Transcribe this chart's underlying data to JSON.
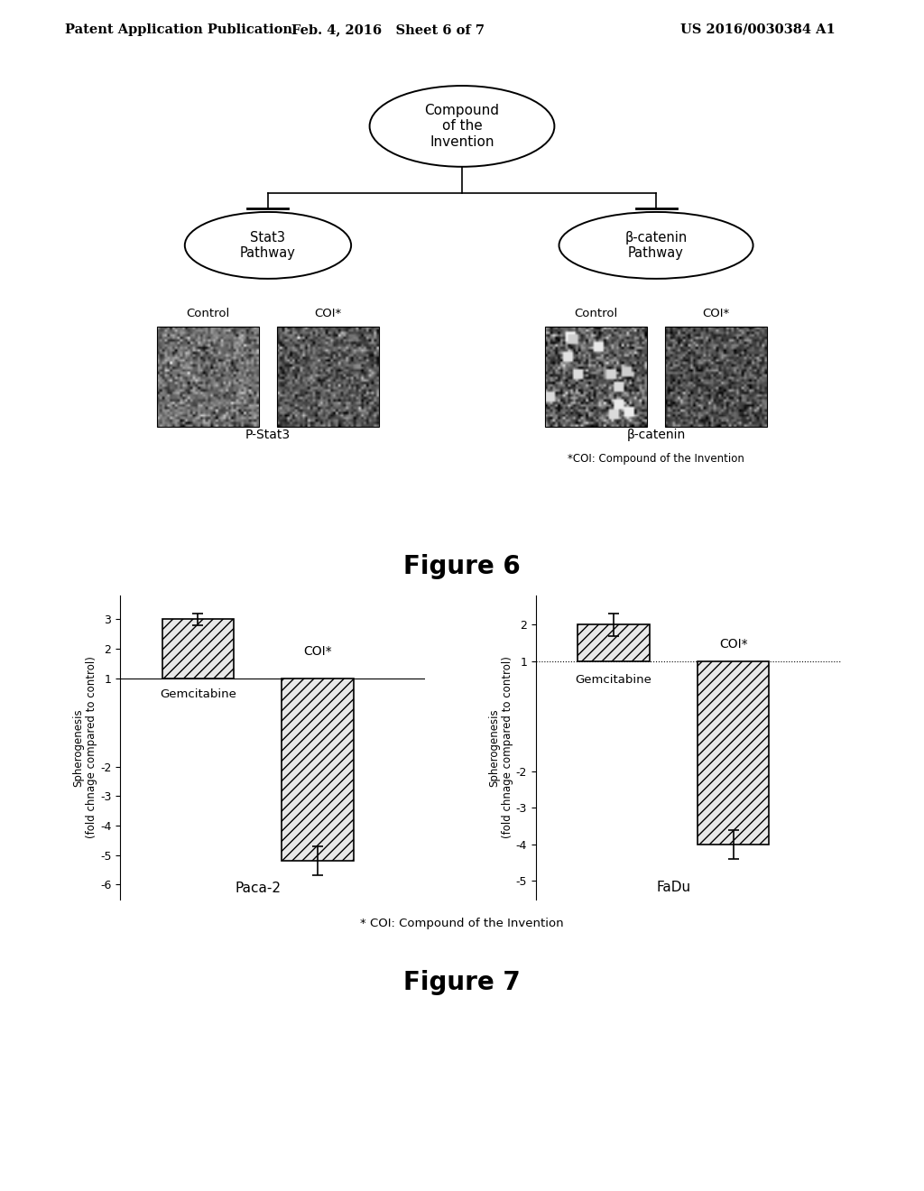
{
  "header_left": "Patent Application Publication",
  "header_mid": "Feb. 4, 2016   Sheet 6 of 7",
  "header_right": "US 2016/0030384 A1",
  "diagram": {
    "root_label": "Compound\nof the\nInvention",
    "left_child_label": "Stat3\nPathway",
    "right_child_label": "β-catenin\nPathway",
    "left_img_labels": [
      "Control",
      "COI*"
    ],
    "right_img_labels": [
      "Control",
      "COI*"
    ],
    "left_caption": "P-Stat3",
    "right_caption": "β-catenin",
    "coi_note": "*COI: Compound of the Invention"
  },
  "figure6_label": "Figure 6",
  "chart1": {
    "bar_values": [
      3.0,
      -5.2
    ],
    "bar_errors": [
      0.2,
      0.5
    ],
    "bar_labels": [
      "Gemcitabine",
      "COI*"
    ],
    "ylabel_line1": "Spherogenesis",
    "ylabel_line2": "(fold chnage compared to control)",
    "xlabel": "Paca-2",
    "yticks": [
      3,
      2,
      1,
      -2,
      -3,
      -4,
      -5,
      -6
    ],
    "yline": 1,
    "ylim": [
      -6.5,
      3.8
    ]
  },
  "chart2": {
    "bar_values": [
      2.0,
      -4.0
    ],
    "bar_errors": [
      0.3,
      0.4
    ],
    "bar_labels": [
      "Gemcitabine",
      "COI*"
    ],
    "ylabel_line1": "Spherogenesis",
    "ylabel_line2": "(fold chnage compared to control)",
    "xlabel": "FaDu",
    "yticks": [
      2,
      1,
      -2,
      -3,
      -4,
      -5
    ],
    "yline": 1,
    "ylim": [
      -5.5,
      2.8
    ]
  },
  "figure7_label": "Figure 7",
  "coi_note2": "* COI: Compound of the Invention",
  "bg_color": "#ffffff",
  "bar_hatch": "///",
  "bar_facecolor": "#e8e8e8",
  "bar_edgecolor": "#000000"
}
